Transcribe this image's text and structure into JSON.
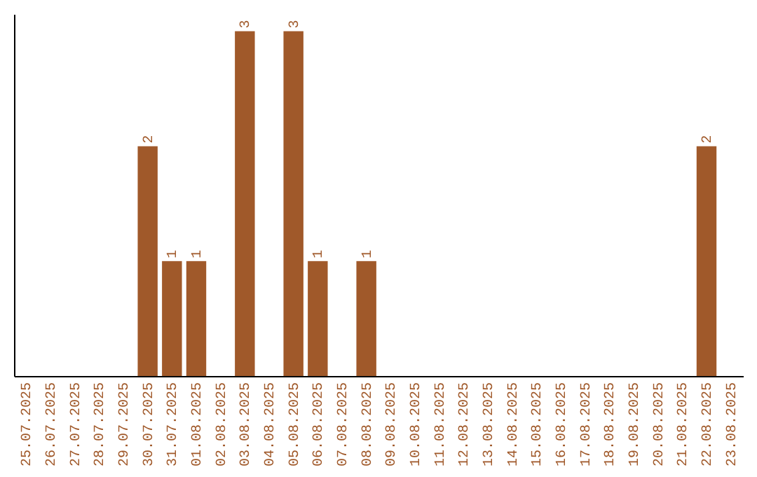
{
  "chart_data": {
    "type": "bar",
    "categories": [
      "25.07.2025",
      "26.07.2025",
      "27.07.2025",
      "28.07.2025",
      "29.07.2025",
      "30.07.2025",
      "31.07.2025",
      "01.08.2025",
      "02.08.2025",
      "03.08.2025",
      "04.08.2025",
      "05.08.2025",
      "06.08.2025",
      "07.08.2025",
      "08.08.2025",
      "09.08.2025",
      "10.08.2025",
      "11.08.2025",
      "12.08.2025",
      "13.08.2025",
      "14.08.2025",
      "15.08.2025",
      "16.08.2025",
      "17.08.2025",
      "18.08.2025",
      "19.08.2025",
      "20.08.2025",
      "21.08.2025",
      "22.08.2025",
      "23.08.2025"
    ],
    "values": [
      0,
      0,
      0,
      0,
      0,
      2,
      1,
      1,
      0,
      3,
      0,
      3,
      1,
      0,
      1,
      0,
      0,
      0,
      0,
      0,
      0,
      0,
      0,
      0,
      0,
      0,
      0,
      0,
      2,
      0
    ],
    "value_labels": [
      null,
      null,
      null,
      null,
      null,
      "2",
      "1",
      "1",
      null,
      "3",
      null,
      "3",
      "1",
      null,
      "1",
      null,
      null,
      null,
      null,
      null,
      null,
      null,
      null,
      null,
      null,
      null,
      null,
      null,
      "2",
      null
    ],
    "color": "#a0592a",
    "ylim": [
      0,
      3.15
    ],
    "grid": false,
    "tick_labels": "x"
  }
}
